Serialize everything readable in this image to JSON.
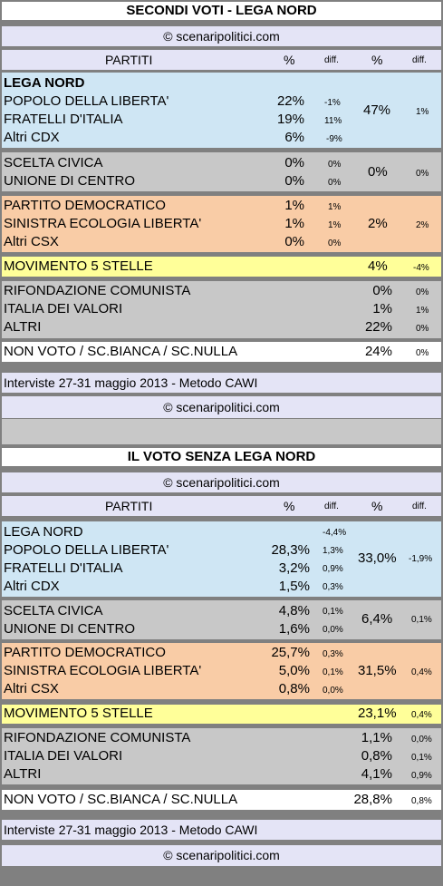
{
  "copyright": "© scenaripolitici.com",
  "header": {
    "partiti": "PARTITI",
    "pct": "%",
    "diff": "diff.",
    "pct2": "%",
    "diff2": "diff."
  },
  "footnote": "Interviste 27-31 maggio 2013 - Metodo CAWI",
  "colors": {
    "blue": "#cfe6f4",
    "gray": "#c8c8c8",
    "orange": "#f9cca6",
    "yellow": "#ffff99"
  },
  "s1": {
    "title": "SECONDI VOTI - LEGA NORD",
    "blue": {
      "head": "LEGA NORD",
      "rows": [
        {
          "name": "POPOLO DELLA LIBERTA'",
          "pct": "22%",
          "diff": "-1%"
        },
        {
          "name": "FRATELLI D'ITALIA",
          "pct": "19%",
          "diff": "11%"
        },
        {
          "name": "Altri CDX",
          "pct": "6%",
          "diff": "-9%"
        }
      ],
      "total": "47%",
      "tdiff": "1%"
    },
    "gray": {
      "rows": [
        {
          "name": "SCELTA CIVICA",
          "pct": "0%",
          "diff": "0%"
        },
        {
          "name": "UNIONE DI CENTRO",
          "pct": "0%",
          "diff": "0%"
        }
      ],
      "total": "0%",
      "tdiff": "0%"
    },
    "orange": {
      "rows": [
        {
          "name": "PARTITO DEMOCRATICO",
          "pct": "1%",
          "diff": "1%"
        },
        {
          "name": "SINISTRA ECOLOGIA LIBERTA'",
          "pct": "1%",
          "diff": "1%"
        },
        {
          "name": "Altri CSX",
          "pct": "0%",
          "diff": "0%"
        }
      ],
      "total": "2%",
      "tdiff": "2%"
    },
    "m5s": {
      "name": "MOVIMENTO 5 STELLE",
      "total": "4%",
      "tdiff": "-4%"
    },
    "others": [
      {
        "name": "RIFONDAZIONE COMUNISTA",
        "total": "0%",
        "tdiff": "0%"
      },
      {
        "name": "ITALIA DEI  VALORI",
        "total": "1%",
        "tdiff": "1%"
      },
      {
        "name": "ALTRI",
        "total": "22%",
        "tdiff": "0%"
      }
    ],
    "nonvoto": {
      "name": "NON VOTO / SC.BIANCA / SC.NULLA",
      "total": "24%",
      "tdiff": "0%"
    }
  },
  "s2": {
    "title": "IL VOTO SENZA LEGA NORD",
    "blue": {
      "rows": [
        {
          "name": "LEGA NORD",
          "pct": "",
          "diff": "-4,4%"
        },
        {
          "name": "POPOLO DELLA LIBERTA'",
          "pct": "28,3%",
          "diff": "1,3%"
        },
        {
          "name": "FRATELLI D'ITALIA",
          "pct": "3,2%",
          "diff": "0,9%"
        },
        {
          "name": "Altri CDX",
          "pct": "1,5%",
          "diff": "0,3%"
        }
      ],
      "total": "33,0%",
      "tdiff": "-1,9%"
    },
    "gray": {
      "rows": [
        {
          "name": "SCELTA CIVICA",
          "pct": "4,8%",
          "diff": "0,1%"
        },
        {
          "name": "UNIONE DI CENTRO",
          "pct": "1,6%",
          "diff": "0,0%"
        }
      ],
      "total": "6,4%",
      "tdiff": "0,1%"
    },
    "orange": {
      "rows": [
        {
          "name": "PARTITO DEMOCRATICO",
          "pct": "25,7%",
          "diff": "0,3%"
        },
        {
          "name": "SINISTRA ECOLOGIA LIBERTA'",
          "pct": "5,0%",
          "diff": "0,1%"
        },
        {
          "name": "Altri CSX",
          "pct": "0,8%",
          "diff": "0,0%"
        }
      ],
      "total": "31,5%",
      "tdiff": "0,4%"
    },
    "m5s": {
      "name": "MOVIMENTO 5 STELLE",
      "total": "23,1%",
      "tdiff": "0,4%"
    },
    "others": [
      {
        "name": "RIFONDAZIONE COMUNISTA",
        "total": "1,1%",
        "tdiff": "0,0%"
      },
      {
        "name": "ITALIA DEI  VALORI",
        "total": "0,8%",
        "tdiff": "0,1%"
      },
      {
        "name": "ALTRI",
        "total": "4,1%",
        "tdiff": "0,9%"
      }
    ],
    "nonvoto": {
      "name": "NON VOTO / SC.BIANCA / SC.NULLA",
      "total": "28,8%",
      "tdiff": "0,8%"
    }
  }
}
